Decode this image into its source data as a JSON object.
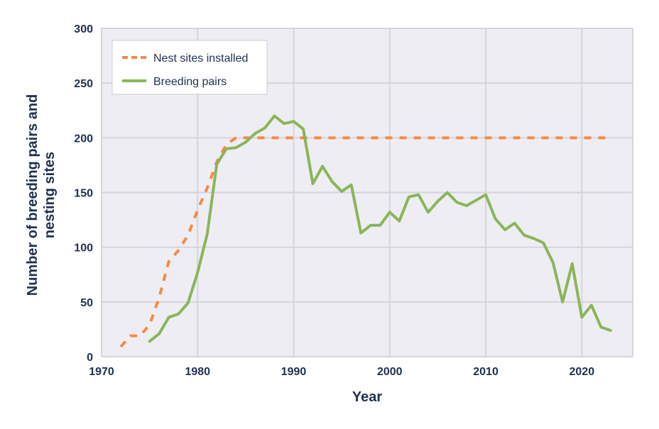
{
  "chart_data": {
    "type": "line",
    "title": "",
    "xlabel": "Year",
    "ylabel": "Number of breeding pairs and nesting sites",
    "xlim": [
      1970,
      2025.3
    ],
    "ylim": [
      0,
      300
    ],
    "xticks": [
      1970,
      1980,
      1990,
      2000,
      2010,
      2020
    ],
    "yticks": [
      0,
      50,
      100,
      150,
      200,
      250,
      300
    ],
    "grid": true,
    "legend_placement": "top-left",
    "series": [
      {
        "name": "Nest sites installed",
        "style": "dashed",
        "color": "#f58a42",
        "x": [
          1972,
          1973,
          1974,
          1975,
          1976,
          1977,
          1978,
          1979,
          1980,
          1981,
          1982,
          1983,
          1984,
          2023
        ],
        "y": [
          9,
          19,
          19,
          29,
          54,
          87,
          97,
          111,
          134,
          154,
          178,
          194,
          200,
          200
        ]
      },
      {
        "name": "Breeding pairs",
        "style": "solid",
        "color": "#8ab55a",
        "x": [
          1975,
          1976,
          1977,
          1978,
          1979,
          1980,
          1981,
          1982,
          1983,
          1984,
          1985,
          1986,
          1987,
          1988,
          1989,
          1990,
          1991,
          1992,
          1993,
          1994,
          1995,
          1996,
          1997,
          1998,
          1999,
          2000,
          2001,
          2002,
          2003,
          2004,
          2005,
          2006,
          2007,
          2008,
          2009,
          2010,
          2011,
          2012,
          2013,
          2014,
          2015,
          2016,
          2017,
          2018,
          2019,
          2020,
          2021,
          2022,
          2023
        ],
        "y": [
          14,
          21,
          36,
          39,
          49,
          77,
          112,
          176,
          190,
          191,
          196,
          204,
          209,
          220,
          213,
          215,
          208,
          158,
          174,
          160,
          151,
          157,
          113,
          120,
          120,
          132,
          124,
          146,
          148,
          132,
          142,
          150,
          141,
          138,
          143,
          148,
          126,
          116,
          122,
          111,
          108,
          104,
          86,
          50,
          85,
          36,
          47,
          27,
          24
        ]
      }
    ]
  }
}
